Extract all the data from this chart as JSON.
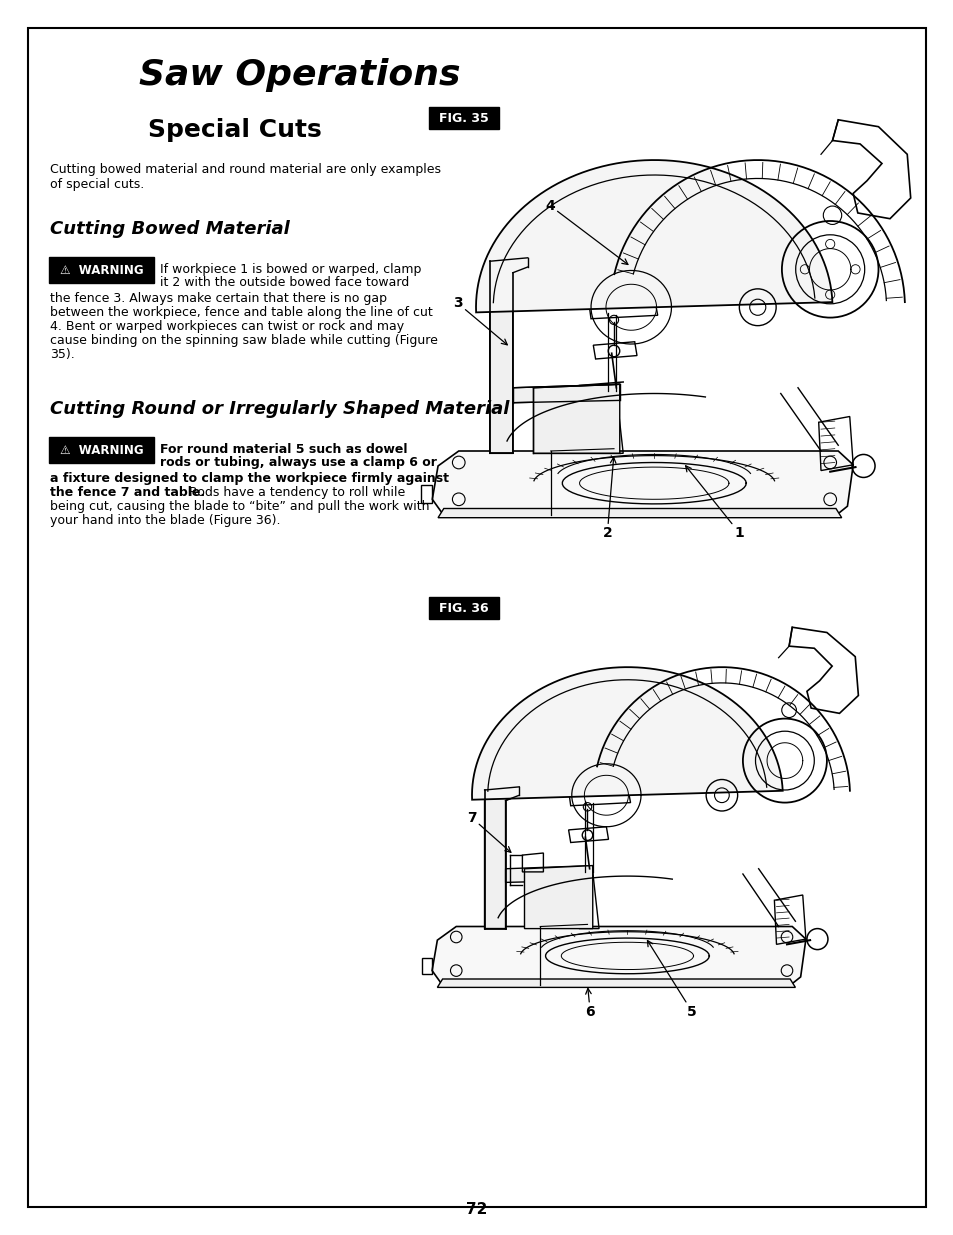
{
  "page_bg": "#ffffff",
  "border_color": "#000000",
  "title": "Saw Operations",
  "subtitle": "Special Cuts",
  "intro_text_line1": "Cutting bowed material and round material are only examples",
  "intro_text_line2": "of special cuts.",
  "section1_title": "Cutting Bowed Material",
  "section2_title": "Cutting Round or Irregularly Shaped Material",
  "warning_label": "⚠  WARNING",
  "warning1_line1": "If workpiece 1 is bowed or warped, clamp",
  "warning1_line2": "it 2 with the outside bowed face toward",
  "warning1_body": [
    "the fence 3. Always make certain that there is no gap",
    "between the workpiece, fence and table along the line of cut",
    "4. Bent or warped workpieces can twist or rock and may",
    "cause binding on the spinning saw blade while cutting (Figure",
    "35)."
  ],
  "warning2_line1": "For round material 5 such as dowel",
  "warning2_line2": "rods or tubing, always use a clamp 6 or",
  "warning2_bold1": "a fixture designed to clamp the workpiece firmly against",
  "warning2_bold2": "the fence 7 and table.",
  "warning2_normal": " Rods have a tendency to roll while",
  "warning2_body": [
    "being cut, causing the blade to “bite” and pull the work with",
    "your hand into the blade (Figure 36)."
  ],
  "fig35_label": "FIG. 35",
  "fig36_label": "FIG. 36",
  "page_number": "72"
}
